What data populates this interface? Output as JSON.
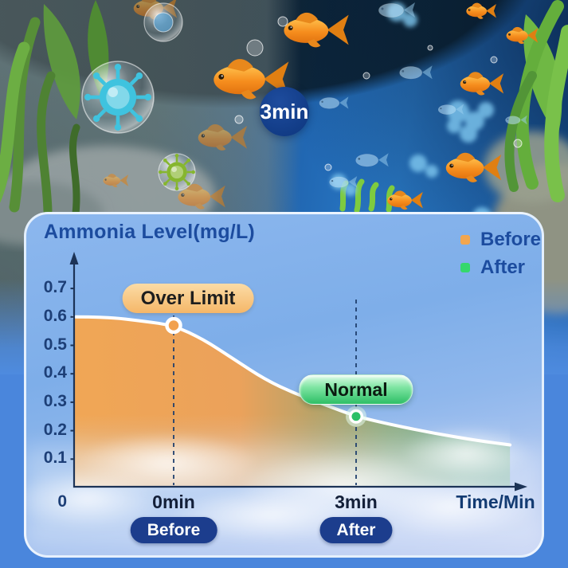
{
  "scene": {
    "timer_badge": "3min"
  },
  "panel": {
    "title": "Ammonia Level(mg/L)",
    "legend": [
      {
        "label": "Before",
        "color": "#F2A64F"
      },
      {
        "label": "After",
        "color": "#35D86C"
      }
    ],
    "x_axis_label": "Time/Min",
    "origin_label": "0",
    "annotations": {
      "over_limit": "Over Limit",
      "normal": "Normal"
    },
    "buttons": {
      "before": "Before",
      "after": "After"
    },
    "colors": {
      "accent_navy": "#1C3D8D",
      "title_blue": "#1C4C9F"
    }
  },
  "chart_data": {
    "type": "area",
    "title": "Ammonia Level(mg/L)",
    "xlabel": "Time/Min",
    "ylabel": "Ammonia Level (mg/L)",
    "ylim": [
      0,
      0.7
    ],
    "y_ticks": [
      0.7,
      0.6,
      0.5,
      0.4,
      0.3,
      0.2,
      0.1
    ],
    "x_ticks": [
      {
        "x": 0,
        "label": "0min"
      },
      {
        "x": 3,
        "label": "3min"
      }
    ],
    "legend_entries": [
      "Before",
      "After"
    ],
    "curve_points": [
      [
        -1.64,
        0.6
      ],
      [
        -1.1,
        0.6
      ],
      [
        -0.5,
        0.585
      ],
      [
        0,
        0.57
      ],
      [
        0.5,
        0.52
      ],
      [
        1.0,
        0.45
      ],
      [
        1.5,
        0.38
      ],
      [
        2.0,
        0.33
      ],
      [
        2.5,
        0.29
      ],
      [
        3.0,
        0.25
      ],
      [
        3.6,
        0.22
      ],
      [
        4.3,
        0.19
      ],
      [
        5.0,
        0.165
      ],
      [
        5.53,
        0.15
      ]
    ],
    "markers": [
      {
        "series": "Before",
        "x": 0,
        "value": 0.57,
        "label": "Over Limit"
      },
      {
        "series": "After",
        "x": 3,
        "value": 0.25,
        "label": "Normal"
      }
    ]
  }
}
